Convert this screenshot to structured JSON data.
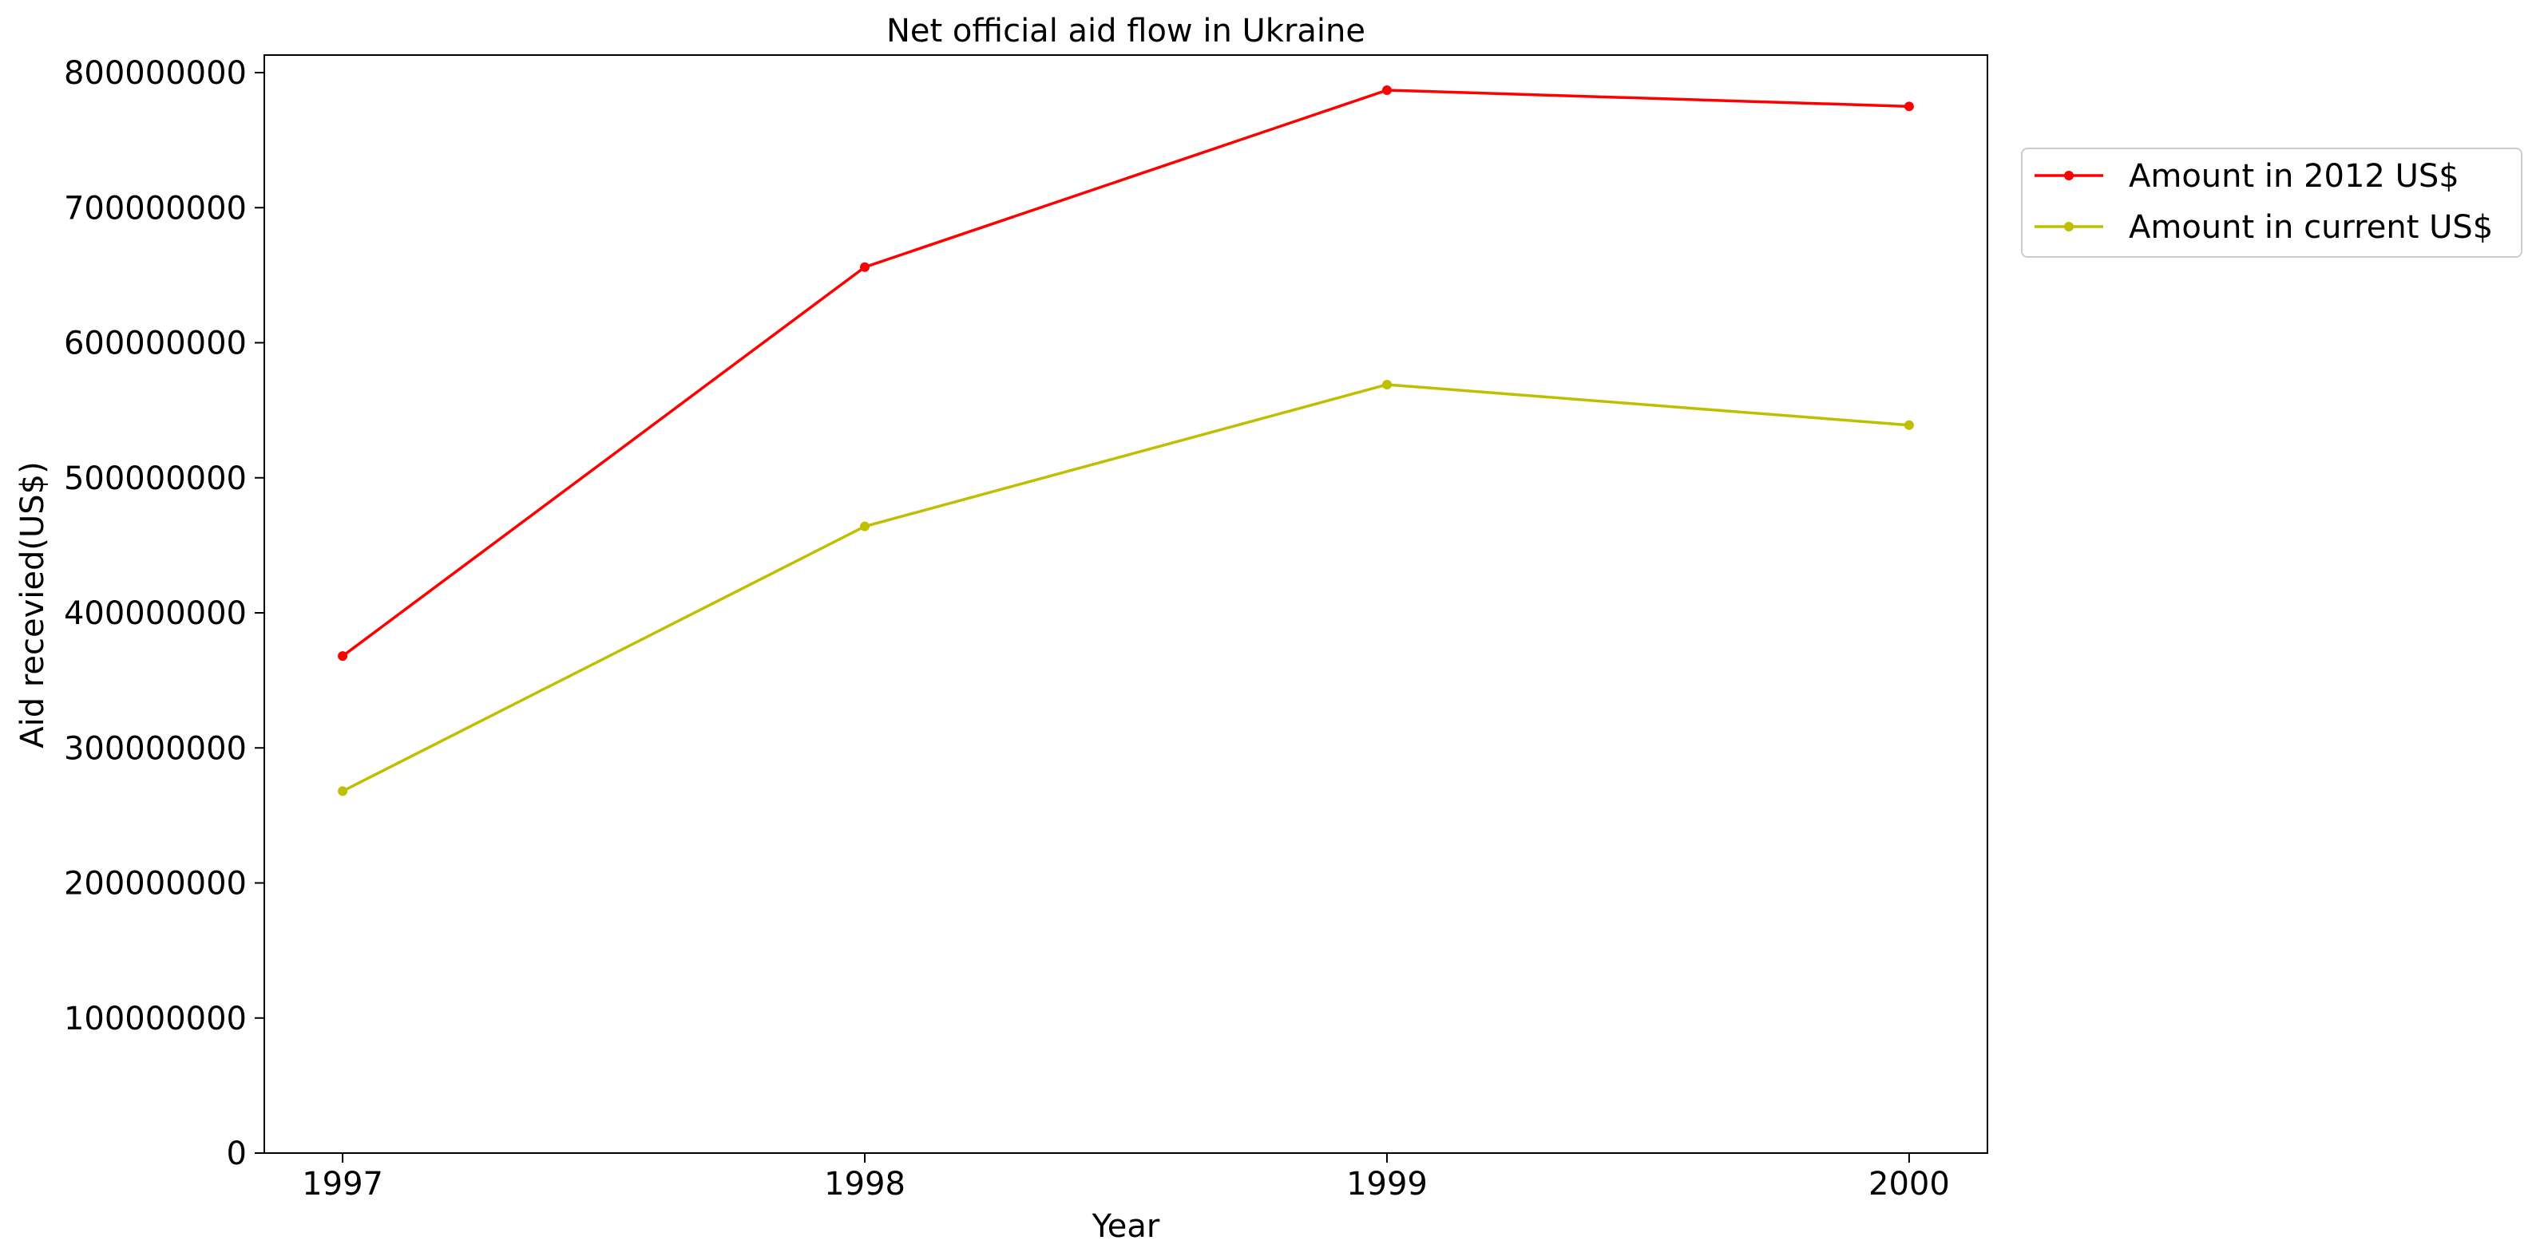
{
  "chart_data": {
    "type": "line",
    "title": "Net official aid flow in Ukraine",
    "xlabel": "Year",
    "ylabel": "Aid recevied(US$)",
    "x": [
      1997,
      1998,
      1999,
      2000
    ],
    "x_tick_labels": [
      "1997",
      "1998",
      "1999",
      "2000"
    ],
    "y_tick_values": [
      0,
      100000000,
      200000000,
      300000000,
      400000000,
      500000000,
      600000000,
      700000000,
      800000000
    ],
    "y_tick_labels": [
      "0",
      "100000000",
      "200000000",
      "300000000",
      "400000000",
      "500000000",
      "600000000",
      "700000000",
      "800000000"
    ],
    "ylim": [
      0,
      813000000
    ],
    "xlim": [
      1996.85,
      2000.15
    ],
    "grid": false,
    "legend_position": "outside-top-right",
    "series": [
      {
        "name": "Amount in 2012 US$",
        "color": "#ff0000",
        "values": [
          368000000,
          656000000,
          787000000,
          775000000
        ]
      },
      {
        "name": "Amount in current US$",
        "color": "#bfbf00",
        "values": [
          268000000,
          464000000,
          569000000,
          539000000
        ]
      }
    ]
  }
}
